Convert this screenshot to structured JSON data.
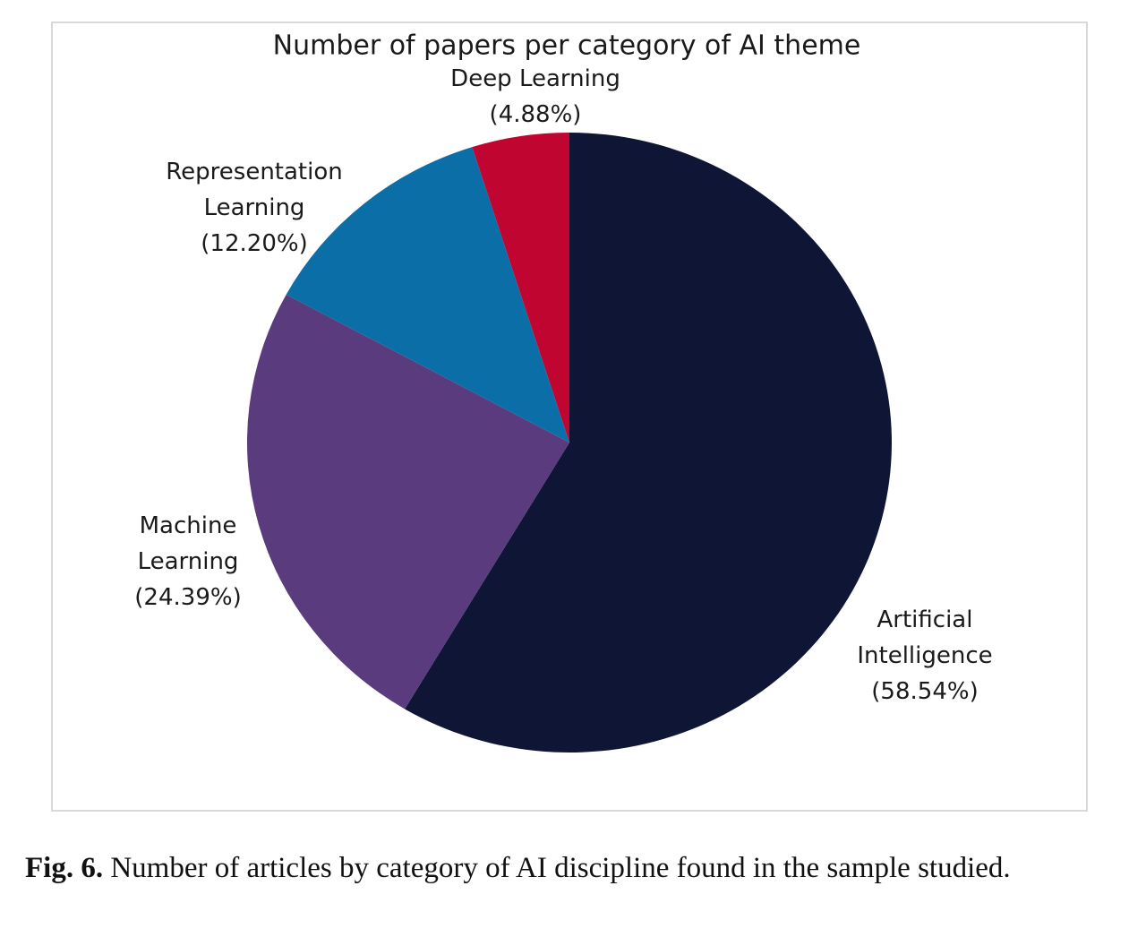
{
  "chart_data": {
    "type": "pie",
    "title": "Number of papers per category of AI theme",
    "categories": [
      "Artificial\nIntelligence",
      "Machine\nLearning",
      "Representation\nLearning",
      "Deep Learning"
    ],
    "values": [
      58.54,
      24.39,
      12.2,
      4.88
    ],
    "value_labels": [
      "(58.54%)",
      "(24.39%)",
      "(12.20%)",
      "(4.88%)"
    ],
    "colors": [
      "#0f1535",
      "#5a3c7e",
      "#0b6ea6",
      "#bf0530"
    ]
  },
  "caption": {
    "label": "Fig. 6.",
    "text": "Number of articles by category of AI discipline found in the sample studied."
  }
}
